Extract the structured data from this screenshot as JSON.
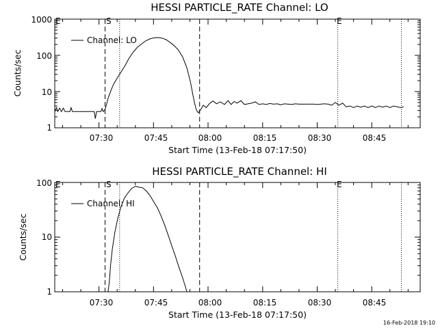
{
  "footer": {
    "timestamp": "16-Feb-2018 19:10"
  },
  "chart_data": [
    {
      "type": "line",
      "title": "HESSI PARTICLE_RATE Channel: LO",
      "xlabel": "Start Time (13-Feb-18 07:17:50)",
      "ylabel": "Counts/sec",
      "xlim": [
        "07:17:50",
        "08:58:20"
      ],
      "ylim": [
        1,
        1000
      ],
      "yscale": "log",
      "x_ticks": [
        "07:30",
        "07:45",
        "08:00",
        "08:15",
        "08:30",
        "08:45"
      ],
      "y_ticks": [
        "1",
        "10",
        "100",
        "1000"
      ],
      "legend": {
        "position": "top-left",
        "entries": [
          "Channel: LO"
        ]
      },
      "markers": [
        {
          "label": "E",
          "time": "07:17:50",
          "style": "none"
        },
        {
          "label": "S",
          "time": "07:31:40",
          "style": "dashed"
        },
        {
          "label": "",
          "time": "07:35:40",
          "style": "dotted"
        },
        {
          "label": "",
          "time": "07:57:40",
          "style": "dashed"
        },
        {
          "label": "E",
          "time": "08:35:40",
          "style": "dotted"
        },
        {
          "label": "",
          "time": "08:53:10",
          "style": "dotted"
        }
      ],
      "series": [
        {
          "x": [
            "07:17:50",
            "07:18:20",
            "07:18:40",
            "07:19:10",
            "07:19:40",
            "07:20:10",
            "07:20:40",
            "07:22:00",
            "07:22:20",
            "07:22:40",
            "07:24:00",
            "07:25:30",
            "07:27:00",
            "07:28:40",
            "07:29:00",
            "07:29:20",
            "07:30:30",
            "07:30:50",
            "07:31:10",
            "07:31:40",
            "07:32:00",
            "07:32:30",
            "07:33:10",
            "07:34:00",
            "07:35:10",
            "07:36:10",
            "07:37:10",
            "07:38:10",
            "07:39:20",
            "07:40:30",
            "07:41:40",
            "07:42:50",
            "07:44:00",
            "07:45:10",
            "07:46:10",
            "07:47:20",
            "07:48:30",
            "07:49:30",
            "07:50:40",
            "07:51:50",
            "07:53:00",
            "07:54:10",
            "07:55:10",
            "07:55:50",
            "07:56:20",
            "07:56:50",
            "07:57:20",
            "07:58:00",
            "07:58:40",
            "07:59:30",
            "08:00:20",
            "08:01:20",
            "08:02:20",
            "08:03:20",
            "08:04:30",
            "08:05:30",
            "08:06:20",
            "08:07:10",
            "08:08:00",
            "08:09:00",
            "08:10:00",
            "08:11:00",
            "08:12:00",
            "08:13:00",
            "08:14:00",
            "08:15:00",
            "08:16:00",
            "08:17:00",
            "08:18:00",
            "08:19:00",
            "08:20:00",
            "08:21:00",
            "08:22:00",
            "08:23:00",
            "08:24:00",
            "08:25:00",
            "08:26:00",
            "08:27:00",
            "08:28:00",
            "08:29:00",
            "08:30:00",
            "08:31:00",
            "08:32:00",
            "08:33:00",
            "08:34:00",
            "08:35:00",
            "08:36:00",
            "08:37:00",
            "08:38:00",
            "08:39:00",
            "08:40:00",
            "08:41:00",
            "08:42:00",
            "08:43:00",
            "08:44:00",
            "08:45:00",
            "08:46:00",
            "08:47:00",
            "08:48:00",
            "08:49:00",
            "08:50:00",
            "08:51:00",
            "08:52:00",
            "08:53:00",
            "08:53:50"
          ],
          "y": [
            2.8,
            3.6,
            2.8,
            3.5,
            2.8,
            3.5,
            2.8,
            2.8,
            3.6,
            2.8,
            2.8,
            2.8,
            2.8,
            2.8,
            1.8,
            2.8,
            2.8,
            3.4,
            2.8,
            3.2,
            4.2,
            6.5,
            10,
            16,
            25,
            36,
            52,
            80,
            120,
            165,
            205,
            250,
            285,
            305,
            310,
            300,
            270,
            230,
            185,
            140,
            90,
            45,
            18,
            8,
            4.5,
            3,
            2.6,
            3.2,
            4.2,
            3.6,
            4.6,
            5.5,
            4.6,
            5.2,
            4.4,
            5.6,
            4.4,
            5.3,
            4.8,
            5.6,
            4.4,
            4.6,
            4.8,
            5.2,
            4.4,
            4.6,
            4.4,
            4.7,
            4.5,
            4.6,
            4.3,
            4.6,
            4.5,
            4.4,
            4.6,
            4.5,
            4.5,
            4.5,
            4.5,
            4.5,
            4.4,
            4.5,
            4.6,
            4.5,
            4.2,
            5.0,
            4.2,
            4.8,
            3.8,
            4.0,
            3.6,
            4.0,
            3.7,
            4.0,
            3.6,
            4.0,
            3.6,
            4.0,
            3.7,
            4.0,
            3.6,
            4.0,
            3.8,
            3.6,
            3.8
          ]
        }
      ]
    },
    {
      "type": "line",
      "title": "HESSI PARTICLE_RATE Channel: HI",
      "xlabel": "Start Time (13-Feb-18 07:17:50)",
      "ylabel": "Counts/sec",
      "xlim": [
        "07:17:50",
        "08:58:20"
      ],
      "ylim": [
        1,
        100
      ],
      "yscale": "log",
      "x_ticks": [
        "07:30",
        "07:45",
        "08:00",
        "08:15",
        "08:30",
        "08:45"
      ],
      "y_ticks": [
        "1",
        "10",
        "100"
      ],
      "legend": {
        "position": "top-left",
        "entries": [
          "Channel: HI"
        ]
      },
      "markers": [
        {
          "label": "E",
          "time": "07:17:50",
          "style": "none"
        },
        {
          "label": "S",
          "time": "07:31:40",
          "style": "dashed"
        },
        {
          "label": "",
          "time": "07:35:40",
          "style": "dotted"
        },
        {
          "label": "",
          "time": "07:57:40",
          "style": "dashed"
        },
        {
          "label": "E",
          "time": "08:35:40",
          "style": "dotted"
        },
        {
          "label": "",
          "time": "08:53:10",
          "style": "dotted"
        }
      ],
      "series": [
        {
          "x": [
            "07:32:30",
            "07:32:50",
            "07:33:10",
            "07:33:40",
            "07:34:20",
            "07:35:10",
            "07:36:00",
            "07:37:00",
            "07:38:00",
            "07:39:00",
            "07:40:00",
            "07:41:00",
            "07:42:00",
            "07:43:00",
            "07:44:00",
            "07:45:00",
            "07:46:00",
            "07:47:00",
            "07:48:00",
            "07:49:00",
            "07:50:00",
            "07:51:00",
            "07:52:00",
            "07:53:00",
            "07:53:40",
            "07:54:10"
          ],
          "y": [
            1.0,
            1.5,
            3,
            6,
            12,
            22,
            35,
            52,
            65,
            78,
            85,
            82,
            80,
            70,
            58,
            45,
            35,
            25,
            17,
            11,
            7,
            4.5,
            2.8,
            1.8,
            1.3,
            1.0
          ]
        }
      ]
    }
  ]
}
